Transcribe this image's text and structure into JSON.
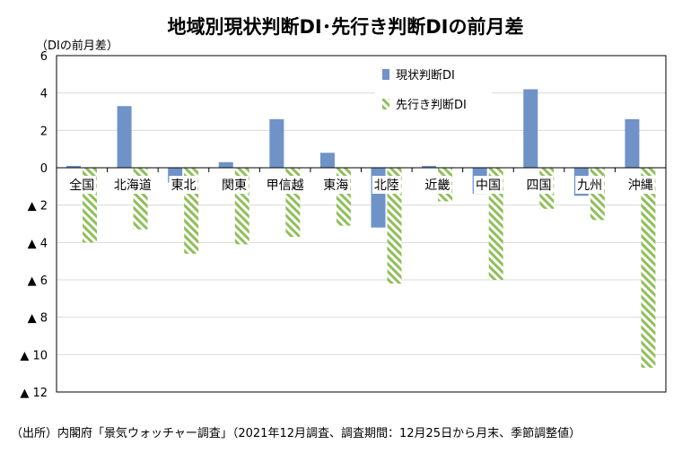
{
  "header": {
    "title": "地域別現状判断DI･先行き判断DIの前月差",
    "unit_label": "（DIの前月差）"
  },
  "footer": {
    "source": "（出所）内閣府「景気ウォッチャー調査」（2021年12月調査、調査期間：12月25日から月末、季節調整値）"
  },
  "colors": {
    "current": "#6f93c7",
    "outlook_stripe": "#8fbf58",
    "grid": "#d9d9d9"
  },
  "chart_data": {
    "type": "bar",
    "categories": [
      "全国",
      "北海道",
      "東北",
      "関東",
      "甲信越",
      "東海",
      "北陸",
      "近畿",
      "中国",
      "四国",
      "九州",
      "沖縄"
    ],
    "series": [
      {
        "name": "現状判断DI",
        "values": [
          0.1,
          3.3,
          -0.8,
          0.3,
          2.6,
          0.8,
          -3.2,
          0.1,
          -1.4,
          4.2,
          -1.5,
          2.6
        ]
      },
      {
        "name": "先行き判断DI",
        "values": [
          -4.0,
          -3.3,
          -4.6,
          -4.1,
          -3.7,
          -3.1,
          -6.2,
          -1.8,
          -6.0,
          -2.2,
          -2.8,
          -10.7
        ]
      }
    ],
    "ylim": [
      -12,
      6
    ],
    "yticks": [
      {
        "value": 6,
        "label": "6"
      },
      {
        "value": 4,
        "label": "4"
      },
      {
        "value": 2,
        "label": "2"
      },
      {
        "value": 0,
        "label": "0"
      },
      {
        "value": -2,
        "label": "▲ 2"
      },
      {
        "value": -4,
        "label": "▲ 4"
      },
      {
        "value": -6,
        "label": "▲ 6"
      },
      {
        "value": -8,
        "label": "▲ 8"
      },
      {
        "value": -10,
        "label": "▲ 10"
      },
      {
        "value": -12,
        "label": "▲ 12"
      }
    ],
    "grid": true,
    "legend_position": "top-right"
  }
}
